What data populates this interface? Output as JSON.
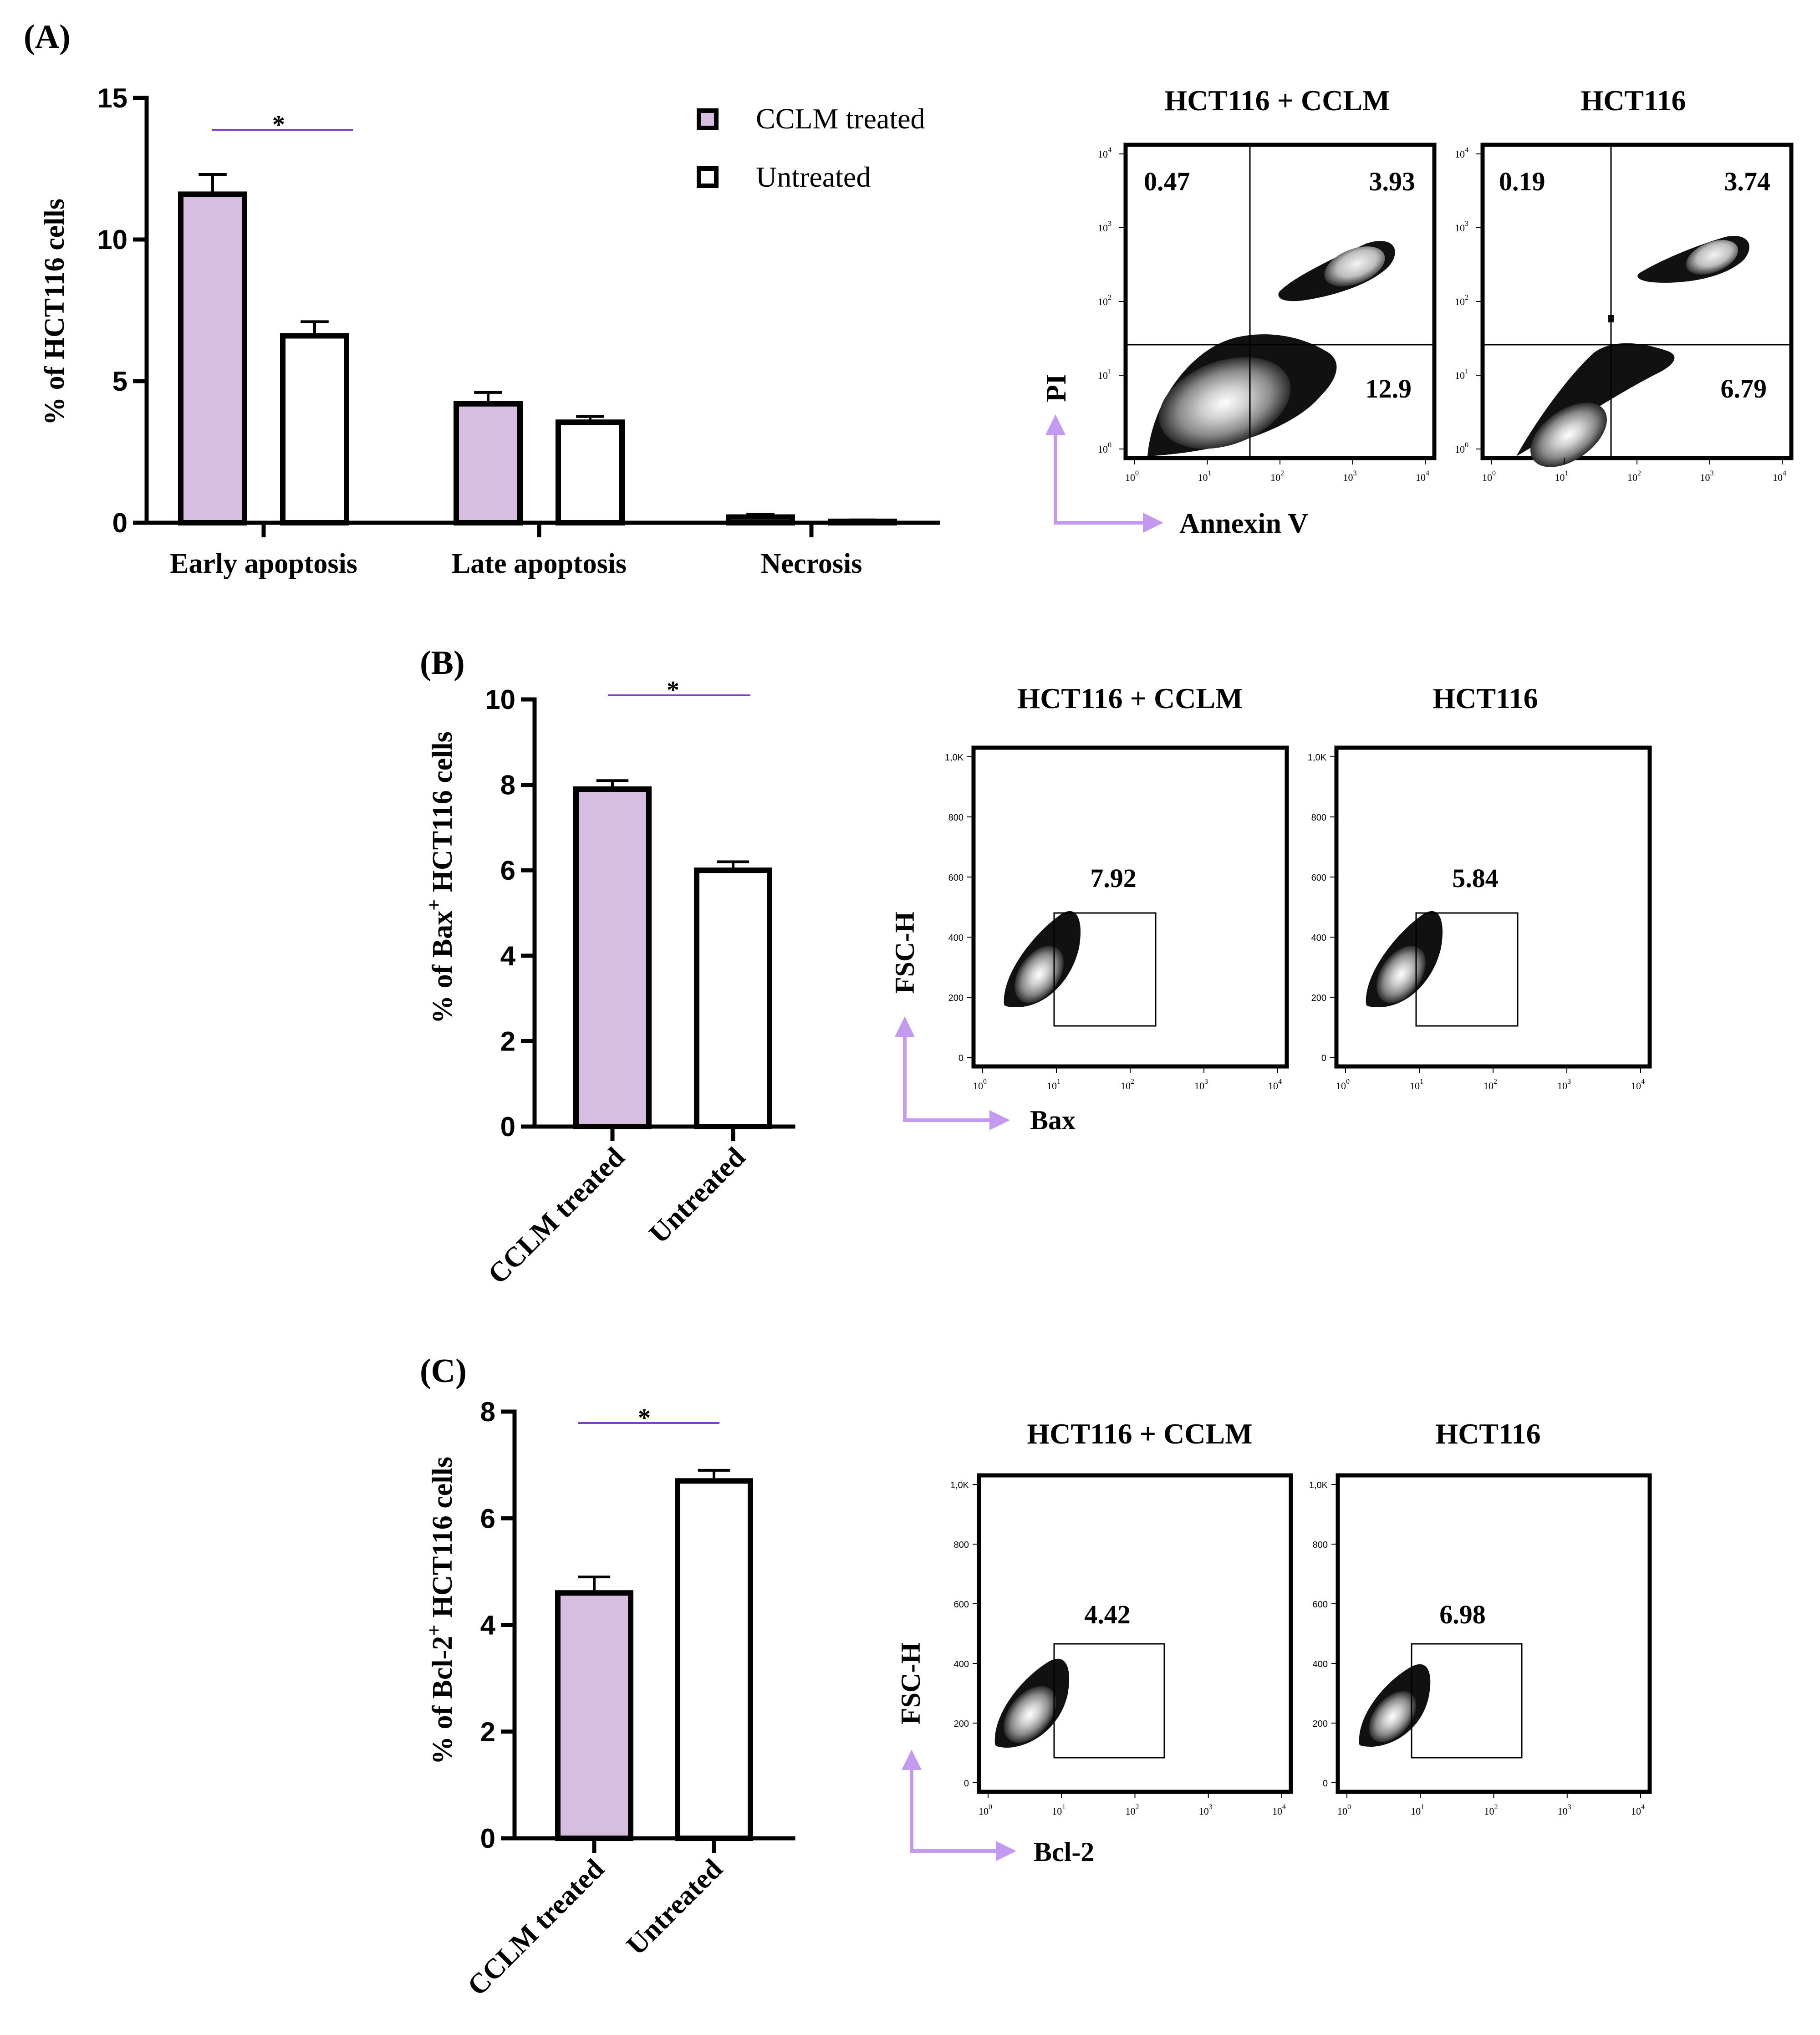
{
  "colors": {
    "treated": "#d7bde0",
    "untreated": "#ffffff",
    "sig_line": "#7a3fd0",
    "axis_arrow": "#c49af0"
  },
  "panel_labels": {
    "a": "(A)",
    "b": "(B)",
    "c": "(C)"
  },
  "chart_data": [
    {
      "id": "A",
      "type": "bar",
      "ylabel": "% of HCT116 cells",
      "ylim": [
        0,
        15
      ],
      "yticks": [
        0,
        5,
        10,
        15
      ],
      "categories": [
        "Early apoptosis",
        "Late apoptosis",
        "Necrosis"
      ],
      "series": [
        {
          "name": "CCLM treated",
          "values": [
            11.6,
            4.2,
            0.2
          ],
          "errors": [
            0.7,
            0.4,
            0.1
          ]
        },
        {
          "name": "Untreated",
          "values": [
            6.6,
            3.55,
            0.05
          ],
          "errors": [
            0.5,
            0.2,
            0.05
          ]
        }
      ],
      "significance": [
        {
          "between": "Early apoptosis",
          "label": "*"
        }
      ]
    },
    {
      "id": "B",
      "type": "bar",
      "ylabel": "% of Bax",
      "ylabel_sup": "+",
      "ylabel_tail": " HCT116 cells",
      "ylim": [
        0,
        10
      ],
      "yticks": [
        0,
        2,
        4,
        6,
        8,
        10
      ],
      "categories": [
        "CCLM treated",
        "Untreated"
      ],
      "values": [
        7.9,
        6.0
      ],
      "errors": [
        0.2,
        0.2
      ],
      "significance": [
        {
          "label": "*"
        }
      ]
    },
    {
      "id": "C",
      "type": "bar",
      "ylabel": "% of Bcl-2",
      "ylabel_sup": "+",
      "ylabel_tail": " HCT116 cells",
      "ylim": [
        0,
        8
      ],
      "yticks": [
        0,
        2,
        4,
        6,
        8
      ],
      "categories": [
        "CCLM treated",
        "Untreated"
      ],
      "values": [
        4.6,
        6.7
      ],
      "errors": [
        0.3,
        0.2
      ],
      "significance": [
        {
          "label": "*"
        }
      ]
    }
  ],
  "flow_panels": {
    "a": {
      "titles": [
        "HCT116 + CCLM",
        "HCT116"
      ],
      "xlabel": "Annexin V",
      "ylabel": "PI",
      "tick_exps": [
        "0",
        "1",
        "2",
        "3",
        "4"
      ],
      "plots": [
        {
          "ul": "0.47",
          "ur": "3.93",
          "lr": "12.9"
        },
        {
          "ul": "0.19",
          "ur": "3.74",
          "lr": "6.79"
        }
      ]
    },
    "b": {
      "titles": [
        "HCT116 + CCLM",
        "HCT116"
      ],
      "xlabel": "Bax",
      "ylabel": "FSC-H",
      "x_tick_exps": [
        "0",
        "1",
        "2",
        "3",
        "4"
      ],
      "y_ticks": [
        "0",
        "200",
        "400",
        "600",
        "800",
        "1,0K"
      ],
      "gate_values": [
        "7.92",
        "5.84"
      ]
    },
    "c": {
      "titles": [
        "HCT116 + CCLM",
        "HCT116"
      ],
      "xlabel": "Bcl-2",
      "ylabel": "FSC-H",
      "x_tick_exps": [
        "0",
        "1",
        "2",
        "3",
        "4"
      ],
      "y_ticks": [
        "0",
        "200",
        "400",
        "600",
        "800",
        "1,0K"
      ],
      "gate_values": [
        "4.42",
        "6.98"
      ]
    }
  }
}
